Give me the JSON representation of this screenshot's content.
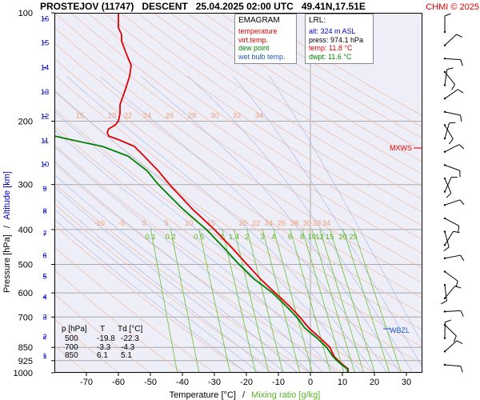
{
  "header": {
    "title": "PROSTEJOV (11747)   DESCENT   25.04.2025 02:00 UTC   49.41N,17.51E",
    "copyright": "CHMI © 2025"
  },
  "legend": {
    "title": "EMAGRAM",
    "items": [
      {
        "label": "temperature",
        "color": "#e00000"
      },
      {
        "label": "virt.temp.",
        "color": "#e00000"
      },
      {
        "label": "dew point",
        "color": "#008000"
      },
      {
        "label": "wet bulb temp.",
        "color": "#1e5ac8"
      }
    ]
  },
  "lrl": {
    "title": "LRL:",
    "items": [
      {
        "label": "alt: 324 m ASL",
        "color": "#0000c0"
      },
      {
        "label": "press: 974.1 hPa",
        "color": "#000000"
      },
      {
        "label": "temp: 11.8 °C",
        "color": "#e00000"
      },
      {
        "label": "dwpt: 11.6 °C",
        "color": "#008000"
      }
    ]
  },
  "table": {
    "headers": [
      "p [hPa]",
      "T",
      "Td [°C]"
    ],
    "rows": [
      [
        "500",
        "-19.8",
        "-22.3"
      ],
      [
        "700",
        "-3.3",
        "-4.3"
      ],
      [
        "850",
        "6.1",
        "5.1"
      ]
    ]
  },
  "markers": {
    "mxws": "MXWS",
    "wbzl": "WBZL"
  },
  "axes": {
    "xlabel": "Temperature [°C]",
    "xlabel_sep": "/",
    "xlabel2": "Mixing ratio [g/kg]",
    "ylabel": "Pressure [hPa]",
    "ylabel_sep": "/",
    "ylabel2": "Altitude [km]"
  },
  "chart_data": {
    "type": "line",
    "title": "PROSTEJOV (11747)   DESCENT   25.04.2025 02:00 UTC   49.41N,17.51E",
    "xlabel": "Temperature [°C] / Mixing ratio [g/kg]",
    "ylabel": "Pressure [hPa] / Altitude [km]",
    "xlim": [
      -80,
      35
    ],
    "ylim": [
      1000,
      100
    ],
    "y_scale": "log",
    "x_ticks": [
      -70,
      -60,
      -50,
      -40,
      -30,
      -20,
      -10,
      0,
      10,
      20,
      30
    ],
    "y_ticks": [
      100,
      200,
      300,
      400,
      500,
      600,
      700,
      850,
      925,
      1000
    ],
    "altitude_ticks_km": [
      {
        "label": "1",
        "p": 898
      },
      {
        "label": "2",
        "p": 795
      },
      {
        "label": "3",
        "p": 701
      },
      {
        "label": "4",
        "p": 616
      },
      {
        "label": "5",
        "p": 540
      },
      {
        "label": "6",
        "p": 472
      },
      {
        "label": "7",
        "p": 411
      },
      {
        "label": "8",
        "p": 356
      },
      {
        "label": "9",
        "p": 308
      },
      {
        "label": "10",
        "p": 264
      },
      {
        "label": "11",
        "p": 227
      },
      {
        "label": "12",
        "p": 194
      },
      {
        "label": "13",
        "p": 166
      },
      {
        "label": "14",
        "p": 142
      },
      {
        "label": "15",
        "p": 121
      },
      {
        "label": "16",
        "p": 104
      }
    ],
    "dry_adiabat_labels": [
      {
        "label": "-10",
        "x": -66,
        "p": 398
      },
      {
        "label": "-5",
        "x": -59,
        "p": 398
      },
      {
        "label": "0",
        "x": -52,
        "p": 398
      },
      {
        "label": "5",
        "x": -45,
        "p": 398
      },
      {
        "label": "10",
        "x": -38,
        "p": 398
      },
      {
        "label": "15",
        "x": -31,
        "p": 398
      },
      {
        "label": "20",
        "x": -21,
        "p": 398
      },
      {
        "label": "22",
        "x": -17,
        "p": 398
      },
      {
        "label": "24",
        "x": -13,
        "p": 398
      },
      {
        "label": "26",
        "x": -9,
        "p": 398
      },
      {
        "label": "28",
        "x": -5,
        "p": 398
      },
      {
        "label": "30",
        "x": -1,
        "p": 398
      },
      {
        "label": "32",
        "x": 2,
        "p": 398
      },
      {
        "label": "34",
        "x": 5,
        "p": 398
      },
      {
        "label": "15",
        "x": -72,
        "p": 200
      },
      {
        "label": "20",
        "x": -62,
        "p": 200
      },
      {
        "label": "22",
        "x": -57,
        "p": 200
      },
      {
        "label": "24",
        "x": -51,
        "p": 200
      },
      {
        "label": "26",
        "x": -44,
        "p": 200
      },
      {
        "label": "28",
        "x": -37,
        "p": 200
      },
      {
        "label": "30",
        "x": -30,
        "p": 200
      },
      {
        "label": "32",
        "x": -23,
        "p": 200
      },
      {
        "label": "34",
        "x": -16,
        "p": 200
      }
    ],
    "mixing_ratio_labels": [
      {
        "label": "0.1",
        "w": 0.1
      },
      {
        "label": "0.2",
        "w": 0.2
      },
      {
        "label": "0.5",
        "w": 0.5
      },
      {
        "label": "1",
        "w": 1
      },
      {
        "label": "1.4",
        "w": 1.4
      },
      {
        "label": "2",
        "w": 2
      },
      {
        "label": "3",
        "w": 3
      },
      {
        "label": "4",
        "w": 4
      },
      {
        "label": "6",
        "w": 6
      },
      {
        "label": "8",
        "w": 8
      },
      {
        "label": "10",
        "w": 10
      },
      {
        "label": "12",
        "w": 12
      },
      {
        "label": "15",
        "w": 15
      },
      {
        "label": "20",
        "w": 20
      },
      {
        "label": "25",
        "w": 25
      }
    ],
    "series": [
      {
        "name": "temperature",
        "color": "#e00000",
        "points": [
          [
            1000,
            11.8
          ],
          [
            975,
            11.8
          ],
          [
            950,
            10.2
          ],
          [
            925,
            8.7
          ],
          [
            900,
            7.4
          ],
          [
            850,
            6.1
          ],
          [
            800,
            3.0
          ],
          [
            750,
            -0.5
          ],
          [
            700,
            -3.3
          ],
          [
            650,
            -6.8
          ],
          [
            600,
            -11.0
          ],
          [
            550,
            -15.5
          ],
          [
            500,
            -19.8
          ],
          [
            450,
            -24.5
          ],
          [
            400,
            -30.0
          ],
          [
            350,
            -37.0
          ],
          [
            300,
            -44.0
          ],
          [
            275,
            -47.5
          ],
          [
            250,
            -52.0
          ],
          [
            235,
            -55.0
          ],
          [
            225,
            -60.0
          ],
          [
            220,
            -63.0
          ],
          [
            215,
            -63.5
          ],
          [
            210,
            -63.0
          ],
          [
            205,
            -61.0
          ],
          [
            200,
            -60.0
          ],
          [
            190,
            -59.5
          ],
          [
            180,
            -59.5
          ],
          [
            170,
            -58.5
          ],
          [
            160,
            -57.5
          ],
          [
            150,
            -56.5
          ],
          [
            140,
            -56.0
          ],
          [
            130,
            -57.5
          ],
          [
            120,
            -59.0
          ],
          [
            115,
            -59.0
          ],
          [
            110,
            -60.0
          ],
          [
            105,
            -60.0
          ],
          [
            100,
            -60.0
          ]
        ]
      },
      {
        "name": "dew point",
        "color": "#008000",
        "points": [
          [
            1000,
            11.6
          ],
          [
            975,
            11.6
          ],
          [
            950,
            9.8
          ],
          [
            925,
            8.3
          ],
          [
            900,
            7.0
          ],
          [
            850,
            5.1
          ],
          [
            800,
            2.0
          ],
          [
            750,
            -1.8
          ],
          [
            700,
            -4.3
          ],
          [
            650,
            -7.8
          ],
          [
            600,
            -11.8
          ],
          [
            550,
            -17.5
          ],
          [
            500,
            -22.3
          ],
          [
            450,
            -27.0
          ],
          [
            400,
            -32.5
          ],
          [
            350,
            -40.0
          ],
          [
            300,
            -47.5
          ],
          [
            275,
            -51.0
          ],
          [
            250,
            -57.0
          ],
          [
            235,
            -65.0
          ],
          [
            225,
            -75.0
          ],
          [
            218,
            -82.0
          ]
        ]
      }
    ],
    "wind_barbs_count": 26
  }
}
